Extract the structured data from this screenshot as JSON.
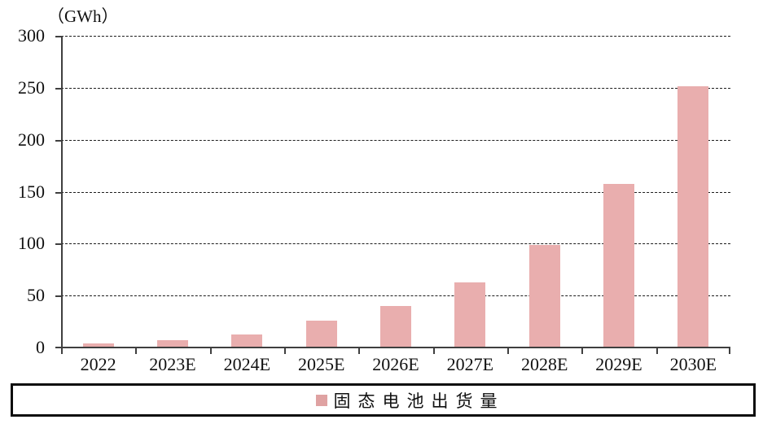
{
  "chart_data": {
    "type": "bar",
    "title": "",
    "unit_label": "（GWh）",
    "categories": [
      "2022",
      "2023E",
      "2024E",
      "2025E",
      "2026E",
      "2027E",
      "2028E",
      "2029E",
      "2030E"
    ],
    "series": [
      {
        "name": "固态电池出货量",
        "values": [
          3,
          6,
          12,
          25,
          39,
          62,
          98,
          157,
          251
        ]
      }
    ],
    "ylim": [
      0,
      300
    ],
    "ytick_step": 50,
    "ytick_labels": [
      "0",
      "50",
      "100",
      "150",
      "200",
      "250",
      "300"
    ],
    "grid": "horizontal-dashed",
    "legend_position": "bottom",
    "bar_color": "#e9aeae",
    "axis_color": "#3f3f3f",
    "gridline_color": "#1c1c1c"
  },
  "legend": {
    "label": "固态电池出货量",
    "swatch_color": "#dfa2a2"
  }
}
